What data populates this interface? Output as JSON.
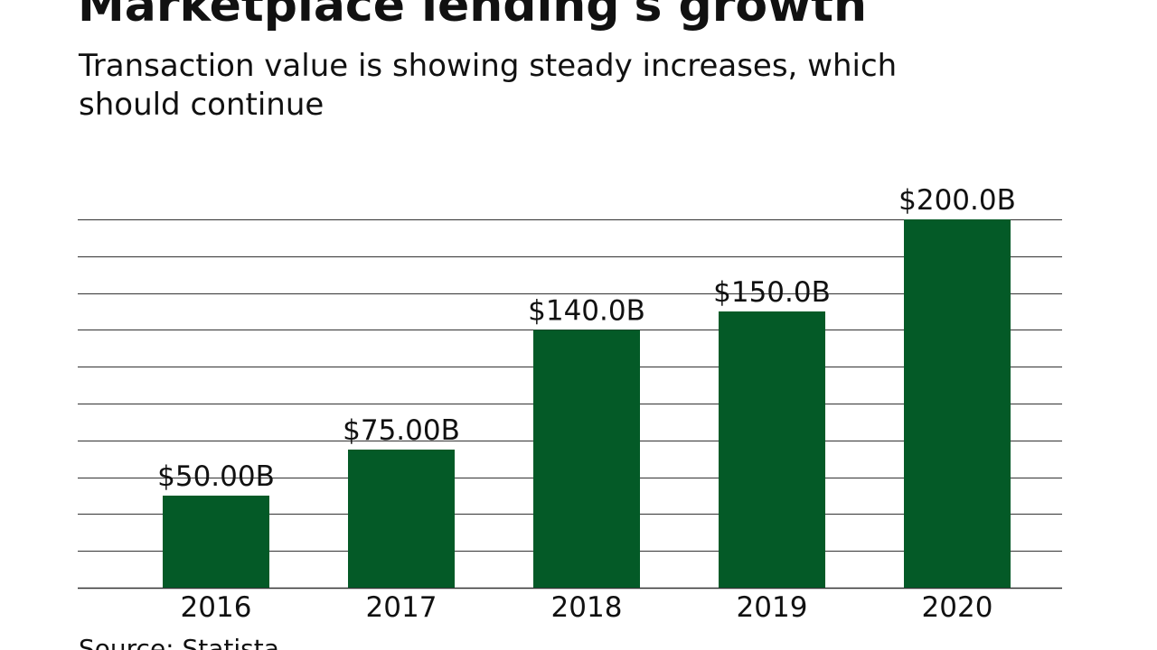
{
  "header": {
    "title": "Marketplace lending's growth",
    "subtitle": "Transaction value is showing steady increases, which should continue"
  },
  "footer": {
    "source": "Source: Statista"
  },
  "colors": {
    "bar": "#045a27",
    "gridline": "#333333",
    "text": "#111111"
  },
  "chart_data": {
    "type": "bar",
    "title": "Marketplace lending's growth",
    "subtitle": "Transaction value is showing steady increases, which should continue",
    "categories": [
      "2016",
      "2017",
      "2018",
      "2019",
      "2020"
    ],
    "values": [
      50,
      75,
      140,
      150,
      200
    ],
    "value_labels": [
      "$50.00B",
      "$75.00B",
      "$140.0B",
      "$150.0B",
      "$200.0B"
    ],
    "unit": "$B",
    "ylim": [
      0,
      200
    ],
    "gridline_step": 20,
    "grid": true,
    "legend": "none",
    "xlabel": "",
    "ylabel": ""
  }
}
